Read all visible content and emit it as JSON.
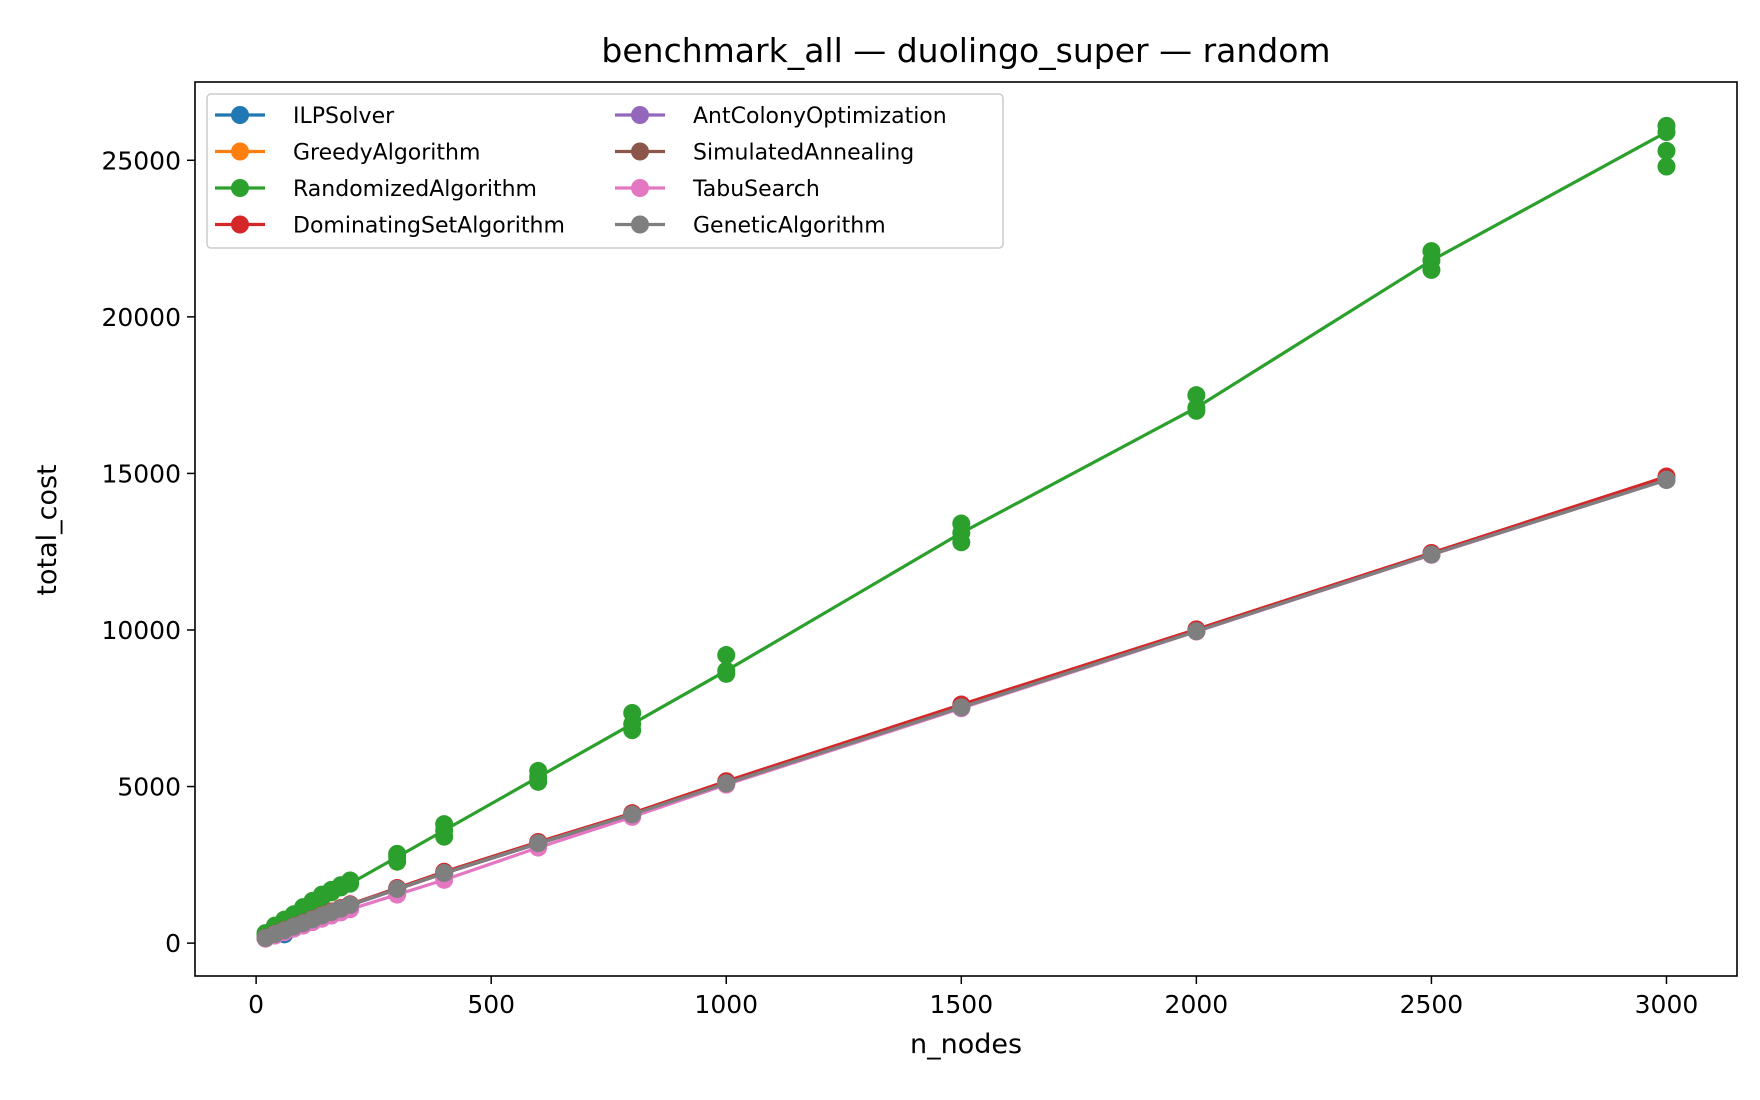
{
  "chart_data": {
    "type": "line",
    "title": "benchmark_all — duolingo_super — random",
    "xlabel": "n_nodes",
    "ylabel": "total_cost",
    "xlim": [
      -130,
      3150
    ],
    "ylim": [
      -1050,
      27500
    ],
    "xticks": [
      0,
      500,
      1000,
      1500,
      2000,
      2500,
      3000
    ],
    "yticks": [
      0,
      5000,
      10000,
      15000,
      20000,
      25000
    ],
    "grid": false,
    "legend_position": "upper-left",
    "legend_columns": 2,
    "x": [
      20,
      40,
      60,
      80,
      100,
      120,
      140,
      160,
      180,
      200,
      300,
      400,
      600,
      800,
      1000,
      1500,
      2000,
      2500,
      3000
    ],
    "series": [
      {
        "name": "ILPSolver",
        "color": "#1f77b4",
        "values": [
          160,
          280,
          400,
          520,
          620,
          740,
          860,
          980,
          1090,
          1210,
          1720,
          2230,
          3180,
          4100,
          5100,
          7530,
          9960,
          12410,
          14800
        ],
        "extra_points": [
          [
            60,
            280
          ]
        ]
      },
      {
        "name": "GreedyAlgorithm",
        "color": "#ff7f0e",
        "values": [
          165,
          290,
          410,
          530,
          630,
          750,
          870,
          990,
          1100,
          1220,
          1730,
          2240,
          3190,
          4110,
          5110,
          7540,
          9970,
          12420,
          14810
        ]
      },
      {
        "name": "RandomizedAlgorithm",
        "color": "#2ca02c",
        "values": [
          220,
          500,
          680,
          860,
          1060,
          1260,
          1460,
          1620,
          1780,
          1900,
          2750,
          3600,
          5300,
          7000,
          8700,
          13100,
          17100,
          21800,
          25900
        ],
        "extra_points": [
          [
            20,
            320
          ],
          [
            40,
            560
          ],
          [
            60,
            750
          ],
          [
            80,
            920
          ],
          [
            100,
            1150
          ],
          [
            120,
            1350
          ],
          [
            140,
            1550
          ],
          [
            160,
            1700
          ],
          [
            180,
            1850
          ],
          [
            200,
            2000
          ],
          [
            300,
            2600
          ],
          [
            300,
            2850
          ],
          [
            400,
            3400
          ],
          [
            400,
            3800
          ],
          [
            600,
            5150
          ],
          [
            600,
            5500
          ],
          [
            800,
            6800
          ],
          [
            800,
            7350
          ],
          [
            1000,
            8600
          ],
          [
            1000,
            9200
          ],
          [
            1500,
            12800
          ],
          [
            1500,
            13400
          ],
          [
            2000,
            17000
          ],
          [
            2000,
            17500
          ],
          [
            2500,
            21500
          ],
          [
            2500,
            22100
          ],
          [
            3000,
            24800
          ],
          [
            3000,
            25300
          ],
          [
            3000,
            26100
          ]
        ]
      },
      {
        "name": "DominatingSetAlgorithm",
        "color": "#d62728",
        "values": [
          170,
          300,
          420,
          540,
          650,
          770,
          890,
          1010,
          1120,
          1240,
          1760,
          2280,
          3230,
          4150,
          5170,
          7620,
          10020,
          12460,
          14900
        ]
      },
      {
        "name": "AntColonyOptimization",
        "color": "#9467bd",
        "values": [
          160,
          280,
          400,
          520,
          620,
          740,
          860,
          980,
          1090,
          1210,
          1720,
          2230,
          3180,
          4100,
          5100,
          7530,
          9960,
          12410,
          14800
        ]
      },
      {
        "name": "SimulatedAnnealing",
        "color": "#8c564b",
        "values": [
          162,
          282,
          402,
          522,
          622,
          742,
          862,
          982,
          1092,
          1212,
          1722,
          2232,
          3182,
          4102,
          5102,
          7532,
          9962,
          12412,
          14802
        ]
      },
      {
        "name": "TabuSearch",
        "color": "#e377c2",
        "values": [
          140,
          240,
          350,
          460,
          560,
          670,
          780,
          880,
          980,
          1080,
          1550,
          2020,
          3050,
          4030,
          5060,
          7500,
          9950,
          12400,
          14790
        ]
      },
      {
        "name": "GeneticAlgorithm",
        "color": "#7f7f7f",
        "values": [
          165,
          290,
          410,
          530,
          640,
          760,
          880,
          990,
          1100,
          1220,
          1730,
          2240,
          3190,
          4110,
          5100,
          7530,
          9960,
          12410,
          14790
        ]
      }
    ]
  }
}
